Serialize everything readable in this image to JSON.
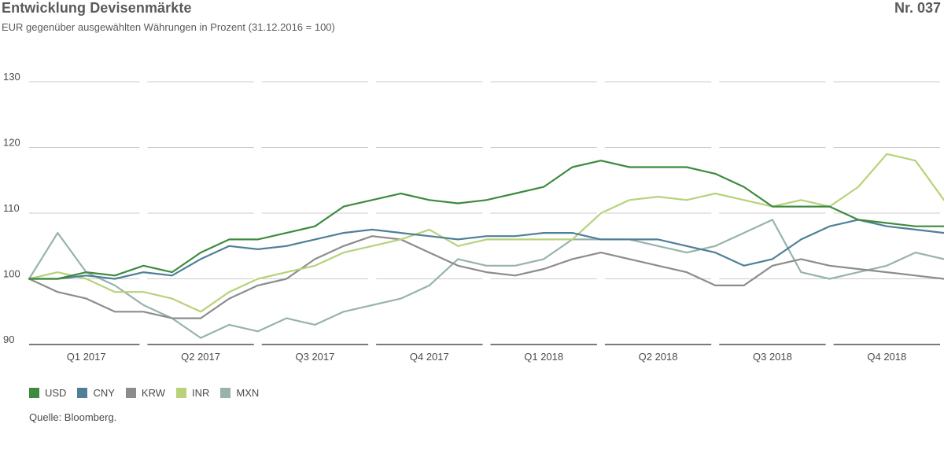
{
  "header": {
    "title": "Entwicklung Devisenmärkte",
    "number": "Nr. 037",
    "subtitle": "EUR gegenüber ausgewählten Währungen in Prozent (31.12.2016 = 100)"
  },
  "source": "Quelle: Bloomberg.",
  "colors": {
    "USD": "#3e8a3f",
    "CNY": "#4f7f97",
    "KRW": "#8c8c8c",
    "INR": "#b7d27a",
    "MXN": "#97b3ab",
    "grid": "#cccccc",
    "axis": "#7a7a7a"
  },
  "chart_data": {
    "type": "line",
    "title": "Entwicklung Devisenmärkte",
    "ylabel": "",
    "xlabel": "",
    "ylim": [
      90,
      130
    ],
    "yticks": [
      90,
      100,
      110,
      120,
      130
    ],
    "grid": true,
    "legend_position": "bottom-left",
    "categories": [
      "Q1 2017",
      "Q2 2017",
      "Q3 2017",
      "Q4 2017",
      "Q1 2018",
      "Q2 2018",
      "Q3 2018",
      "Q4 2018"
    ],
    "x": [
      0,
      0.25,
      0.5,
      0.75,
      1,
      1.25,
      1.5,
      1.75,
      2,
      2.25,
      2.5,
      2.75,
      3,
      3.25,
      3.5,
      3.75,
      4,
      4.25,
      4.5,
      4.75,
      5,
      5.25,
      5.5,
      5.75,
      6,
      6.25,
      6.5,
      6.75,
      7,
      7.25,
      7.5,
      7.75,
      8
    ],
    "series": [
      {
        "name": "USD",
        "values": [
          100,
          100,
          101,
          100.5,
          102,
          101,
          104,
          106,
          106,
          107,
          108,
          111,
          112,
          113,
          112,
          111.5,
          112,
          113,
          114,
          117,
          118,
          117,
          117,
          117,
          116,
          114,
          111,
          111,
          111,
          109,
          108.5,
          108,
          108
        ]
      },
      {
        "name": "CNY",
        "values": [
          100,
          100,
          100.5,
          100,
          101,
          100.5,
          103,
          105,
          104.5,
          105,
          106,
          107,
          107.5,
          107,
          106.5,
          106,
          106.5,
          106.5,
          107,
          107,
          106,
          106,
          106,
          105,
          104,
          102,
          103,
          106,
          108,
          109,
          108,
          107.5,
          107
        ]
      },
      {
        "name": "KRW",
        "values": [
          100,
          98,
          97,
          95,
          95,
          94,
          94,
          97,
          99,
          100,
          103,
          105,
          106.5,
          106,
          104,
          102,
          101,
          100.5,
          101.5,
          103,
          104,
          103,
          102,
          101,
          99,
          99,
          102,
          103,
          102,
          101.5,
          101,
          100.5,
          100
        ]
      },
      {
        "name": "INR",
        "values": [
          100,
          101,
          100,
          98,
          98,
          97,
          95,
          98,
          100,
          101,
          102,
          104,
          105,
          106,
          107.5,
          105,
          106,
          106,
          106,
          106,
          110,
          112,
          112.5,
          112,
          113,
          112,
          111,
          112,
          111,
          114,
          119,
          118,
          112
        ]
      },
      {
        "name": "MXN",
        "values": [
          100,
          107,
          101,
          99,
          96,
          94,
          91,
          93,
          92,
          94,
          93,
          95,
          96,
          97,
          99,
          103,
          102,
          102,
          103,
          106,
          106,
          106,
          105,
          104,
          105,
          107,
          109,
          101,
          100,
          101,
          102,
          104,
          103
        ]
      }
    ]
  }
}
